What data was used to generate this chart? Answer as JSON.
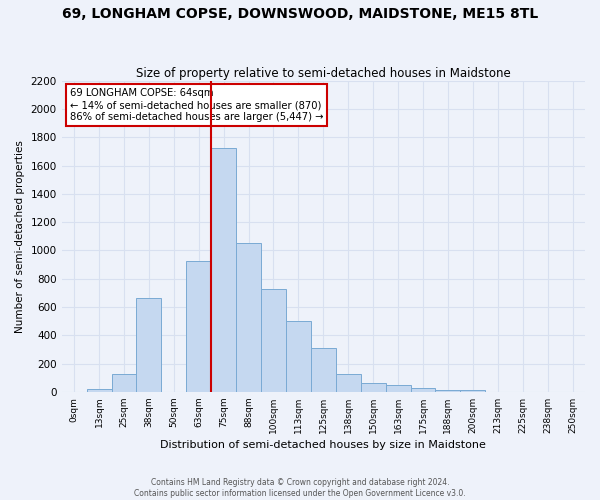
{
  "title": "69, LONGHAM COPSE, DOWNSWOOD, MAIDSTONE, ME15 8TL",
  "subtitle": "Size of property relative to semi-detached houses in Maidstone",
  "xlabel": "Distribution of semi-detached houses by size in Maidstone",
  "ylabel": "Number of semi-detached properties",
  "footer_line1": "Contains HM Land Registry data © Crown copyright and database right 2024.",
  "footer_line2": "Contains public sector information licensed under the Open Government Licence v3.0.",
  "bar_labels": [
    "0sqm",
    "13sqm",
    "25sqm",
    "38sqm",
    "50sqm",
    "63sqm",
    "75sqm",
    "88sqm",
    "100sqm",
    "113sqm",
    "125sqm",
    "138sqm",
    "150sqm",
    "163sqm",
    "175sqm",
    "188sqm",
    "200sqm",
    "213sqm",
    "225sqm",
    "238sqm",
    "250sqm"
  ],
  "bar_values": [
    0,
    20,
    125,
    665,
    0,
    925,
    1725,
    1050,
    730,
    500,
    310,
    125,
    65,
    45,
    30,
    15,
    10,
    0,
    0,
    0,
    0
  ],
  "bar_color": "#c5d8f0",
  "bar_edge_color": "#7aaad4",
  "annotation_box_text": [
    "69 LONGHAM COPSE: 64sqm",
    "← 14% of semi-detached houses are smaller (870)",
    "86% of semi-detached houses are larger (5,447) →"
  ],
  "vline_color": "#cc0000",
  "vline_index": 5,
  "ylim": [
    0,
    2200
  ],
  "yticks": [
    0,
    200,
    400,
    600,
    800,
    1000,
    1200,
    1400,
    1600,
    1800,
    2000,
    2200
  ],
  "bg_color": "#eef2fa",
  "grid_color": "#d8e0f0",
  "box_edge_color": "#cc0000",
  "title_fontsize": 10,
  "subtitle_fontsize": 8.5
}
